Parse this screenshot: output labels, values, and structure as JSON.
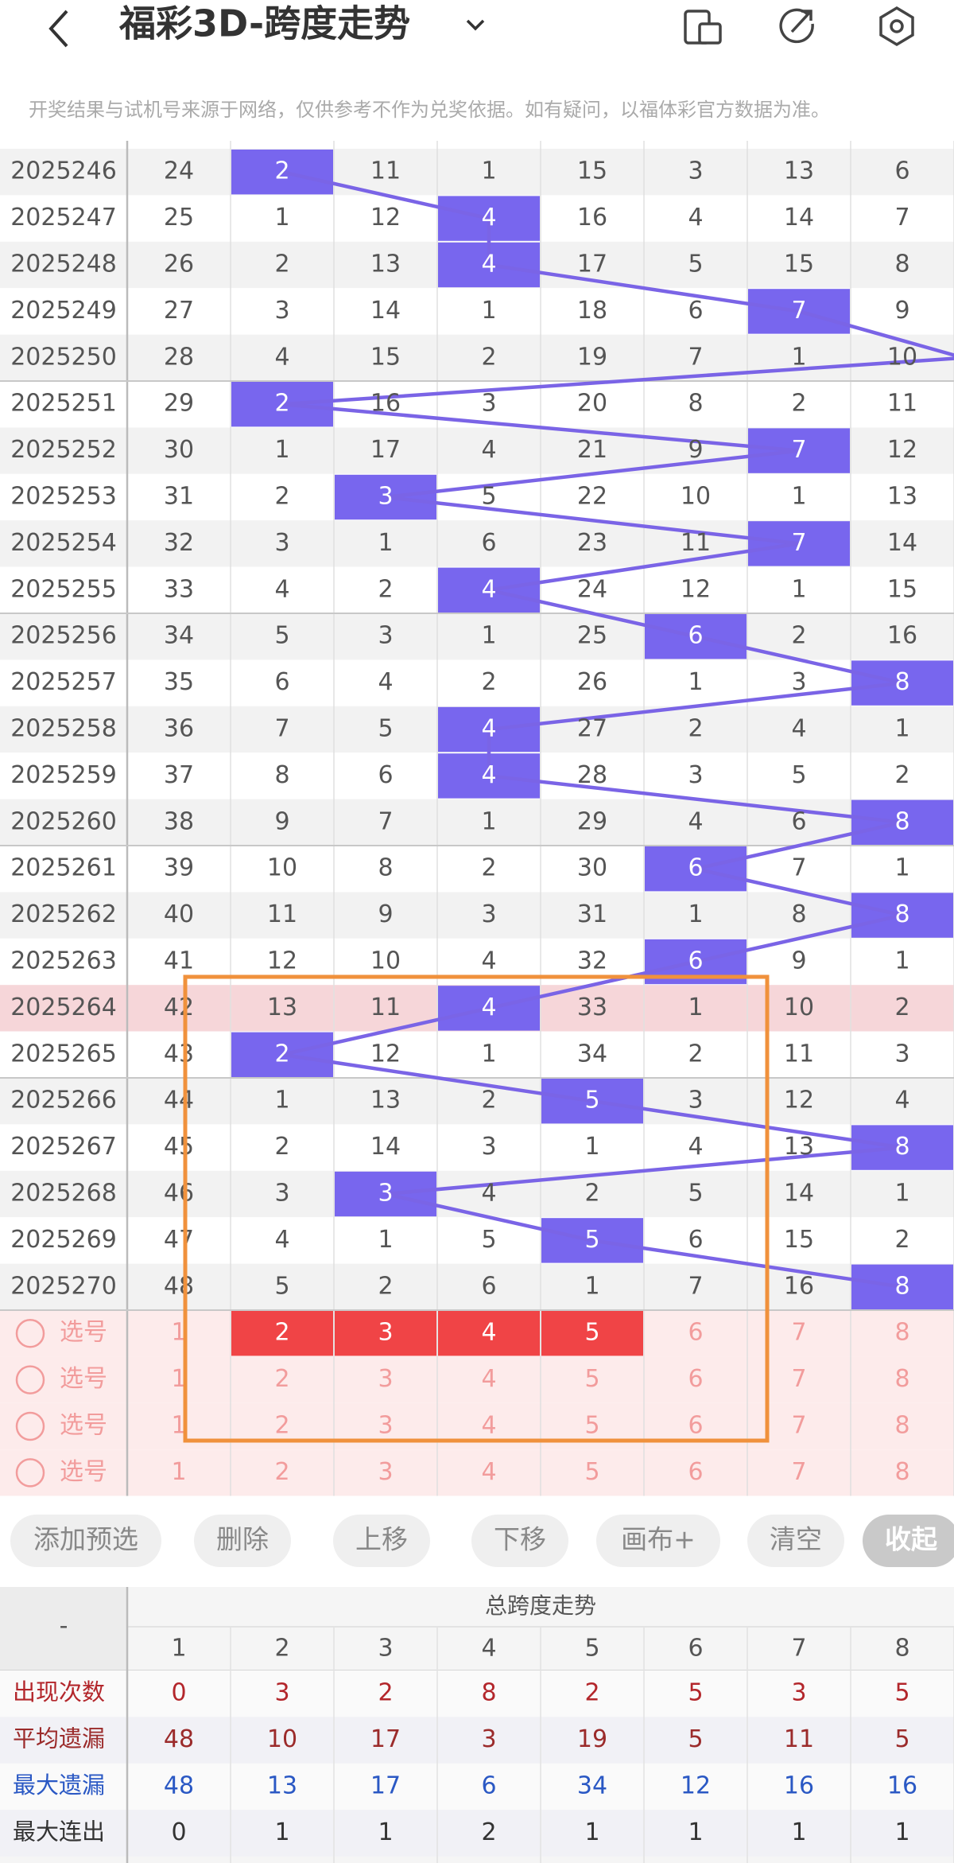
{
  "header": {
    "title": "福彩3D-跨度走势"
  },
  "notice": "开奖结果与试机号来源于网络，仅供参考不作为兑奖依据。如有疑问，以福体彩官方数据为准。",
  "trend": {
    "rows": [
      {
        "issue": "2025246",
        "values": [
          24,
          2,
          11,
          1,
          15,
          3,
          13,
          6
        ],
        "span": 2
      },
      {
        "issue": "2025247",
        "values": [
          25,
          1,
          12,
          4,
          16,
          4,
          14,
          7
        ],
        "span": 4
      },
      {
        "issue": "2025248",
        "values": [
          26,
          2,
          13,
          4,
          17,
          5,
          15,
          8
        ],
        "span": 4
      },
      {
        "issue": "2025249",
        "values": [
          27,
          3,
          14,
          1,
          18,
          6,
          7,
          9
        ],
        "span": 7
      },
      {
        "issue": "2025250",
        "values": [
          28,
          4,
          15,
          2,
          19,
          7,
          1,
          10
        ],
        "span": null
      },
      {
        "issue": "2025251",
        "values": [
          29,
          2,
          16,
          3,
          20,
          8,
          2,
          11
        ],
        "span": 2
      },
      {
        "issue": "2025252",
        "values": [
          30,
          1,
          17,
          4,
          21,
          9,
          7,
          12
        ],
        "span": 7
      },
      {
        "issue": "2025253",
        "values": [
          31,
          2,
          3,
          5,
          22,
          10,
          1,
          13
        ],
        "span": 3
      },
      {
        "issue": "2025254",
        "values": [
          32,
          3,
          1,
          6,
          23,
          11,
          7,
          14
        ],
        "span": 7
      },
      {
        "issue": "2025255",
        "values": [
          33,
          4,
          2,
          4,
          24,
          12,
          1,
          15
        ],
        "span": 4
      },
      {
        "issue": "2025256",
        "values": [
          34,
          5,
          3,
          1,
          25,
          6,
          2,
          16
        ],
        "span": 6
      },
      {
        "issue": "2025257",
        "values": [
          35,
          6,
          4,
          2,
          26,
          1,
          3,
          8
        ],
        "span": 8
      },
      {
        "issue": "2025258",
        "values": [
          36,
          7,
          5,
          4,
          27,
          2,
          4,
          1
        ],
        "span": 4
      },
      {
        "issue": "2025259",
        "values": [
          37,
          8,
          6,
          4,
          28,
          3,
          5,
          2
        ],
        "span": 4
      },
      {
        "issue": "2025260",
        "values": [
          38,
          9,
          7,
          1,
          29,
          4,
          6,
          8
        ],
        "span": 8
      },
      {
        "issue": "2025261",
        "values": [
          39,
          10,
          8,
          2,
          30,
          6,
          7,
          1
        ],
        "span": 6
      },
      {
        "issue": "2025262",
        "values": [
          40,
          11,
          9,
          3,
          31,
          1,
          8,
          8
        ],
        "span": 8
      },
      {
        "issue": "2025263",
        "values": [
          41,
          12,
          10,
          4,
          32,
          6,
          9,
          1
        ],
        "span": 6
      },
      {
        "issue": "2025264",
        "values": [
          42,
          13,
          11,
          4,
          33,
          1,
          10,
          2
        ],
        "span": 4,
        "selected": true
      },
      {
        "issue": "2025265",
        "values": [
          43,
          2,
          12,
          1,
          34,
          2,
          11,
          3
        ],
        "span": 2
      },
      {
        "issue": "2025266",
        "values": [
          44,
          1,
          13,
          2,
          5,
          3,
          12,
          4
        ],
        "span": 5
      },
      {
        "issue": "2025267",
        "values": [
          45,
          2,
          14,
          3,
          1,
          4,
          13,
          8
        ],
        "span": 8
      },
      {
        "issue": "2025268",
        "values": [
          46,
          3,
          3,
          4,
          2,
          5,
          14,
          1
        ],
        "span": 3
      },
      {
        "issue": "2025269",
        "values": [
          47,
          4,
          1,
          5,
          5,
          6,
          15,
          2
        ],
        "span": 5
      },
      {
        "issue": "2025270",
        "values": [
          48,
          5,
          2,
          6,
          1,
          7,
          16,
          8
        ],
        "span": 8
      }
    ]
  },
  "picks": [
    {
      "label": "选号",
      "values": [
        1,
        2,
        3,
        4,
        5,
        6,
        7,
        8
      ],
      "chosen": [
        2,
        3,
        4,
        5
      ]
    },
    {
      "label": "选号",
      "values": [
        1,
        2,
        3,
        4,
        5,
        6,
        7,
        8
      ],
      "chosen": []
    },
    {
      "label": "选号",
      "values": [
        1,
        2,
        3,
        4,
        5,
        6,
        7,
        8
      ],
      "chosen": []
    },
    {
      "label": "选号",
      "values": [
        1,
        2,
        3,
        4,
        5,
        6,
        7,
        8
      ],
      "chosen": []
    }
  ],
  "buttons": [
    "添加预选",
    "删除",
    "上移",
    "下移",
    "画布+",
    "清空",
    "收起"
  ],
  "stats": {
    "corner": "-",
    "title": "总跨度走势",
    "columns": [
      1,
      2,
      3,
      4,
      5,
      6,
      7,
      8
    ],
    "rows": [
      {
        "label": "出现次数",
        "values": [
          0,
          3,
          2,
          8,
          2,
          5,
          3,
          5
        ]
      },
      {
        "label": "平均遗漏",
        "values": [
          48,
          10,
          17,
          3,
          19,
          5,
          11,
          5
        ]
      },
      {
        "label": "最大遗漏",
        "values": [
          48,
          13,
          17,
          6,
          34,
          12,
          16,
          16
        ]
      },
      {
        "label": "最大连出",
        "values": [
          0,
          1,
          1,
          2,
          1,
          1,
          1,
          1
        ]
      }
    ]
  }
}
